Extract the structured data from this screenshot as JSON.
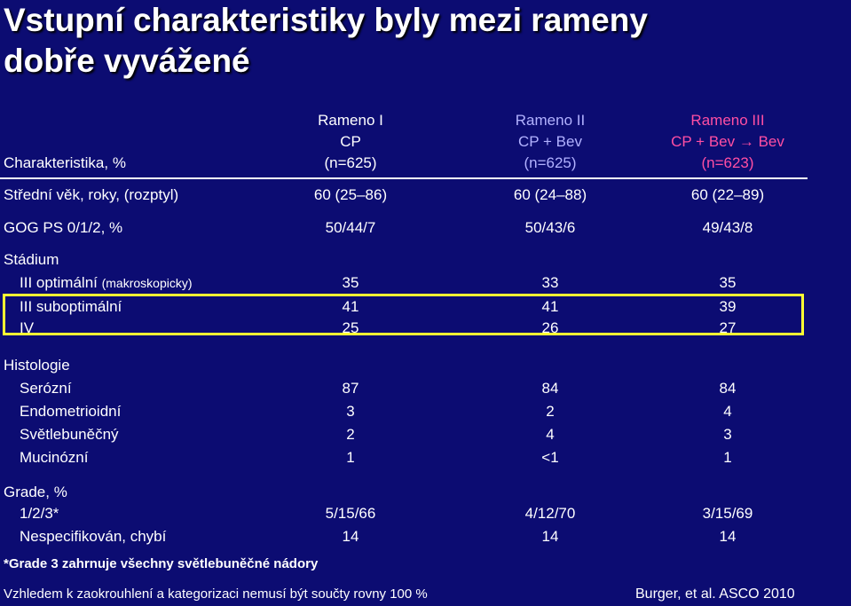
{
  "title": {
    "line1": "Vstupní charakteristiky byly mezi rameny",
    "line2": "dobře vyvážené"
  },
  "header": {
    "label": "Charakteristika, %",
    "arms": [
      {
        "name": "Rameno I",
        "therapy": "CP",
        "n": "(n=625)",
        "color": "#ffffff"
      },
      {
        "name": "Rameno II",
        "therapy": "CP + Bev",
        "n": "(n=625)",
        "color": "#b2b2ff"
      },
      {
        "name": "Rameno III",
        "therapy": "CP + Bev → Bev",
        "n": "(n=623)",
        "color": "#ff4fa3"
      }
    ]
  },
  "rows": {
    "age": {
      "label": "Střední věk, roky, (rozptyl)",
      "v": [
        "60 (25–86)",
        "60 (24–88)",
        "60 (22–89)"
      ]
    },
    "gog": {
      "label": "GOG PS 0/1/2, %",
      "v": [
        "50/44/7",
        "50/43/6",
        "49/43/8"
      ]
    },
    "stage": {
      "label": "Stádium"
    },
    "stage_opt": {
      "label": "III optimální",
      "sub": "(makroskopicky)",
      "v": [
        "35",
        "33",
        "35"
      ]
    },
    "stage_subopt": {
      "label": "III suboptimální",
      "v": [
        "41",
        "41",
        "39"
      ]
    },
    "stage_iv": {
      "label": "IV",
      "v": [
        "25",
        "26",
        "27"
      ]
    },
    "hist": {
      "label": "Histologie"
    },
    "serous": {
      "label": "Serózní",
      "v": [
        "87",
        "84",
        "84"
      ]
    },
    "endo": {
      "label": "Endometrioidní",
      "v": [
        "3",
        "2",
        "4"
      ]
    },
    "clear": {
      "label": "Světlebuněčný",
      "v": [
        "2",
        "4",
        "3"
      ]
    },
    "muc": {
      "label": "Mucinózní",
      "v": [
        "1",
        "<1",
        "1"
      ]
    },
    "grade": {
      "label": "Grade, %"
    },
    "grade123": {
      "label": "1/2/3*",
      "v": [
        "5/15/66",
        "4/12/70",
        "3/15/69"
      ]
    },
    "grade_na": {
      "label": "Nespecifikován, chybí",
      "v": [
        "14",
        "14",
        "14"
      ]
    }
  },
  "footnote": "*Grade 3 zahrnuje všechny světlebuněčné nádory",
  "bottom_note": "Vzhledem k zaokrouhlení a kategorizaci nemusí být součty rovny 100 %",
  "citation": "Burger, et al. ASCO 2010"
}
